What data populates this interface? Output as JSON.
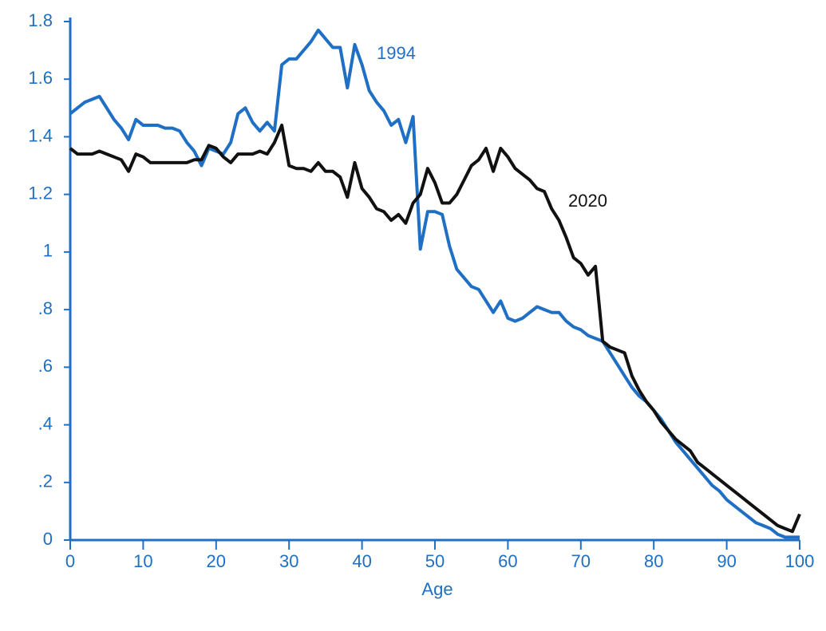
{
  "chart_data": {
    "type": "line",
    "x_label": "Age",
    "x": [
      0,
      1,
      2,
      3,
      4,
      5,
      6,
      7,
      8,
      9,
      10,
      11,
      12,
      13,
      14,
      15,
      16,
      17,
      18,
      19,
      20,
      21,
      22,
      23,
      24,
      25,
      26,
      27,
      28,
      29,
      30,
      31,
      32,
      33,
      34,
      35,
      36,
      37,
      38,
      39,
      40,
      41,
      42,
      43,
      44,
      45,
      46,
      47,
      48,
      49,
      50,
      51,
      52,
      53,
      54,
      55,
      56,
      57,
      58,
      59,
      60,
      61,
      62,
      63,
      64,
      65,
      66,
      67,
      68,
      69,
      70,
      71,
      72,
      73,
      74,
      75,
      76,
      77,
      78,
      79,
      80,
      81,
      82,
      83,
      84,
      85,
      86,
      87,
      88,
      89,
      90,
      91,
      92,
      93,
      94,
      95,
      96,
      97,
      98,
      99,
      100
    ],
    "series": [
      {
        "name": "1994",
        "color": "#1f6fc4",
        "values": [
          1.48,
          1.5,
          1.52,
          1.53,
          1.54,
          1.5,
          1.46,
          1.43,
          1.39,
          1.46,
          1.44,
          1.44,
          1.44,
          1.43,
          1.43,
          1.42,
          1.38,
          1.35,
          1.3,
          1.36,
          1.35,
          1.34,
          1.38,
          1.48,
          1.5,
          1.45,
          1.42,
          1.45,
          1.42,
          1.65,
          1.67,
          1.67,
          1.7,
          1.73,
          1.77,
          1.74,
          1.71,
          1.71,
          1.57,
          1.72,
          1.65,
          1.56,
          1.52,
          1.49,
          1.44,
          1.46,
          1.38,
          1.47,
          1.01,
          1.14,
          1.14,
          1.13,
          1.02,
          0.94,
          0.91,
          0.88,
          0.87,
          0.83,
          0.79,
          0.83,
          0.77,
          0.76,
          0.77,
          0.79,
          0.81,
          0.8,
          0.79,
          0.79,
          0.76,
          0.74,
          0.73,
          0.71,
          0.7,
          0.69,
          0.65,
          0.61,
          0.57,
          0.53,
          0.5,
          0.48,
          0.45,
          0.42,
          0.38,
          0.34,
          0.31,
          0.28,
          0.25,
          0.22,
          0.19,
          0.17,
          0.14,
          0.12,
          0.1,
          0.08,
          0.06,
          0.05,
          0.04,
          0.02,
          0.01,
          0.01,
          0.01
        ]
      },
      {
        "name": "2020",
        "color": "#111111",
        "values": [
          1.36,
          1.34,
          1.34,
          1.34,
          1.35,
          1.34,
          1.33,
          1.32,
          1.28,
          1.34,
          1.33,
          1.31,
          1.31,
          1.31,
          1.31,
          1.31,
          1.31,
          1.32,
          1.32,
          1.37,
          1.36,
          1.33,
          1.31,
          1.34,
          1.34,
          1.34,
          1.35,
          1.34,
          1.38,
          1.44,
          1.3,
          1.29,
          1.29,
          1.28,
          1.31,
          1.28,
          1.28,
          1.26,
          1.19,
          1.31,
          1.22,
          1.19,
          1.15,
          1.14,
          1.11,
          1.13,
          1.1,
          1.17,
          1.2,
          1.29,
          1.24,
          1.17,
          1.17,
          1.2,
          1.25,
          1.3,
          1.32,
          1.36,
          1.28,
          1.36,
          1.33,
          1.29,
          1.27,
          1.25,
          1.22,
          1.21,
          1.15,
          1.11,
          1.05,
          0.98,
          0.96,
          0.92,
          0.95,
          0.69,
          0.67,
          0.66,
          0.65,
          0.57,
          0.52,
          0.48,
          0.45,
          0.41,
          0.38,
          0.35,
          0.33,
          0.31,
          0.27,
          0.25,
          0.23,
          0.21,
          0.19,
          0.17,
          0.15,
          0.13,
          0.11,
          0.09,
          0.07,
          0.05,
          0.04,
          0.03,
          0.09
        ]
      }
    ],
    "xlim": [
      0,
      100
    ],
    "xticks": [
      0,
      10,
      20,
      30,
      40,
      50,
      60,
      70,
      80,
      90,
      100
    ],
    "ylim": [
      0,
      1.8
    ],
    "yticks": [
      0,
      {
        "value": 0.2,
        "label": ".2"
      },
      {
        "value": 0.4,
        "label": ".4"
      },
      {
        "value": 0.6,
        "label": ".6"
      },
      {
        "value": 0.8,
        "label": ".8"
      },
      1,
      1.2,
      1.4,
      1.6,
      1.8
    ],
    "axis_color": "#1f6fc4",
    "grid": false
  }
}
